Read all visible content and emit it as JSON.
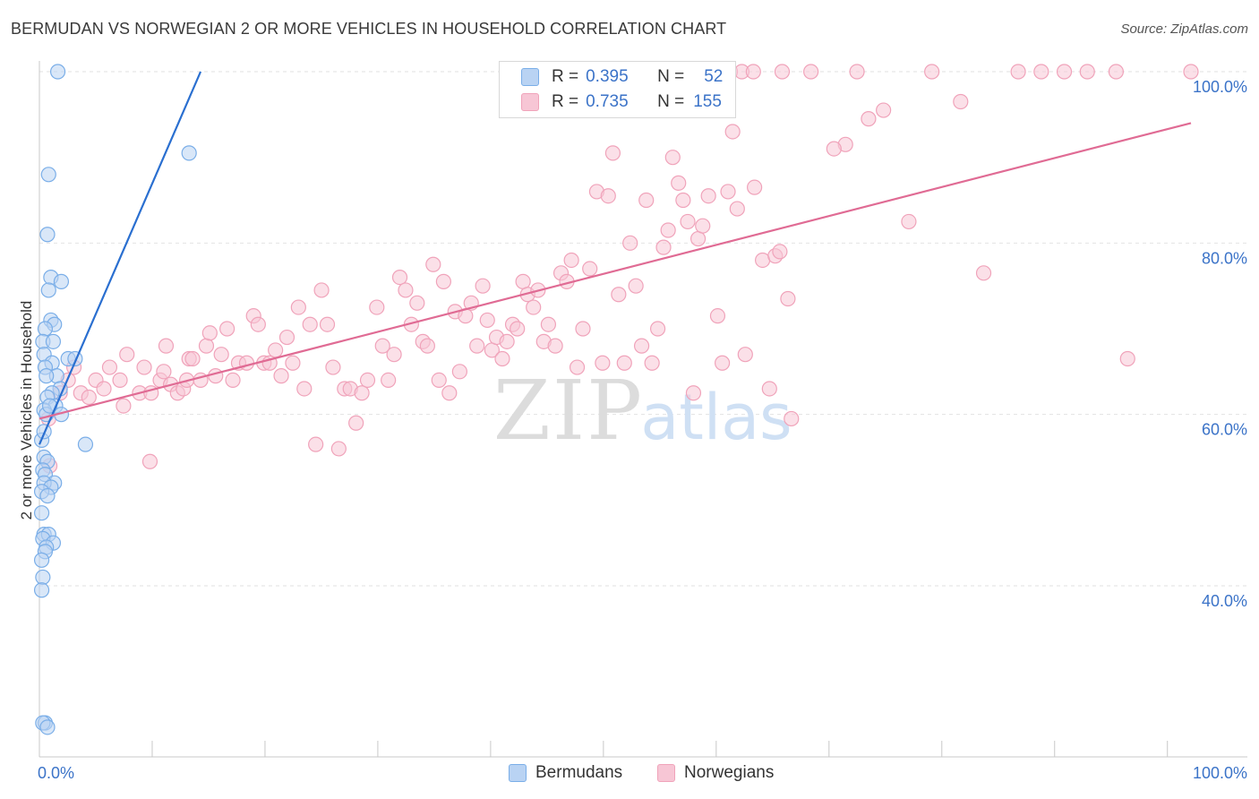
{
  "chart_data": {
    "type": "scatter",
    "title": "BERMUDAN VS NORWEGIAN 2 OR MORE VEHICLES IN HOUSEHOLD CORRELATION CHART",
    "source": "Source: ZipAtlas.com",
    "ylabel": "2 or more Vehicles in Household",
    "xlim": [
      0,
      100
    ],
    "ylim": [
      20,
      102
    ],
    "x_tick_labels": {
      "left": "0.0%",
      "right": "100.0%"
    },
    "y_ticks": [
      {
        "value": 40,
        "label": "40.0%"
      },
      {
        "value": 60,
        "label": "60.0%"
      },
      {
        "value": 80,
        "label": "80.0%"
      },
      {
        "value": 100,
        "label": "100.0%"
      }
    ],
    "watermark": {
      "zip": "ZIP",
      "atlas": "atlas"
    },
    "legend": [
      {
        "r_label": "R =",
        "r_value": "0.395",
        "n_label": "N =",
        "n_value": "52"
      },
      {
        "r_label": "R =",
        "r_value": "0.735",
        "n_label": "N =",
        "n_value": "155"
      }
    ],
    "series": [
      {
        "name": "Bermudans",
        "color": "#7aaee8",
        "fill": "#b9d3f3",
        "line_color": "#2a6fd0",
        "trend": [
          [
            0,
            56.5
          ],
          [
            14,
            100
          ]
        ],
        "points": [
          [
            1.6,
            100
          ],
          [
            0.8,
            88
          ],
          [
            13,
            90.5
          ],
          [
            0.7,
            81
          ],
          [
            1,
            76
          ],
          [
            1.9,
            75.5
          ],
          [
            0.8,
            74.5
          ],
          [
            1,
            71
          ],
          [
            1.3,
            70.5
          ],
          [
            0.5,
            70
          ],
          [
            0.3,
            68.5
          ],
          [
            1.2,
            68.5
          ],
          [
            0.4,
            67
          ],
          [
            2.5,
            66.5
          ],
          [
            3.1,
            66.5
          ],
          [
            1.1,
            66
          ],
          [
            0.5,
            65.5
          ],
          [
            1.5,
            64.5
          ],
          [
            0.6,
            64.5
          ],
          [
            1.8,
            63
          ],
          [
            1.1,
            62.5
          ],
          [
            0.7,
            62
          ],
          [
            1.4,
            61
          ],
          [
            0.4,
            60.5
          ],
          [
            1.9,
            60
          ],
          [
            0.6,
            60
          ],
          [
            0.2,
            57
          ],
          [
            4,
            56.5
          ],
          [
            0.4,
            55
          ],
          [
            0.7,
            54.5
          ],
          [
            0.3,
            53.5
          ],
          [
            0.5,
            53
          ],
          [
            1.3,
            52
          ],
          [
            0.4,
            52
          ],
          [
            1,
            51.5
          ],
          [
            0.2,
            51
          ],
          [
            0.7,
            50.5
          ],
          [
            0.2,
            48.5
          ],
          [
            0.4,
            46
          ],
          [
            0.8,
            46
          ],
          [
            0.3,
            45.5
          ],
          [
            1.2,
            45
          ],
          [
            0.6,
            44.5
          ],
          [
            0.5,
            44
          ],
          [
            0.2,
            43
          ],
          [
            0.3,
            41
          ],
          [
            0.2,
            39.5
          ],
          [
            0.5,
            24
          ],
          [
            0.3,
            24
          ],
          [
            0.7,
            23.5
          ],
          [
            0.9,
            61
          ],
          [
            0.4,
            58
          ]
        ]
      },
      {
        "name": "Norwegians",
        "color": "#f0a3ba",
        "fill": "#f7c6d5",
        "line_color": "#e06b94",
        "trend": [
          [
            0,
            59.5
          ],
          [
            100,
            94
          ]
        ],
        "points": [
          [
            0.8,
            59.5
          ],
          [
            0.9,
            54
          ],
          [
            1.8,
            62.5
          ],
          [
            2.5,
            64
          ],
          [
            3,
            65.5
          ],
          [
            3.6,
            62.5
          ],
          [
            4.3,
            62
          ],
          [
            4.9,
            64
          ],
          [
            5.6,
            63
          ],
          [
            6.1,
            65.5
          ],
          [
            7,
            64
          ],
          [
            7.3,
            61
          ],
          [
            7.6,
            67
          ],
          [
            8.7,
            62.5
          ],
          [
            9.1,
            65.5
          ],
          [
            9.7,
            62.5
          ],
          [
            9.6,
            54.5
          ],
          [
            10.5,
            64
          ],
          [
            10.8,
            65
          ],
          [
            11,
            68
          ],
          [
            11.4,
            63.5
          ],
          [
            12,
            62.5
          ],
          [
            12.5,
            63
          ],
          [
            12.8,
            64
          ],
          [
            13,
            66.5
          ],
          [
            13.3,
            66.5
          ],
          [
            14,
            64
          ],
          [
            14.5,
            68
          ],
          [
            14.8,
            69.5
          ],
          [
            15.3,
            64.5
          ],
          [
            15.8,
            67
          ],
          [
            16.3,
            70
          ],
          [
            16.8,
            64
          ],
          [
            17.3,
            66
          ],
          [
            18,
            66
          ],
          [
            18.6,
            71.5
          ],
          [
            19,
            70.5
          ],
          [
            19.5,
            66
          ],
          [
            20,
            66
          ],
          [
            20.5,
            67.5
          ],
          [
            21,
            64.5
          ],
          [
            21.5,
            69
          ],
          [
            22,
            66
          ],
          [
            22.5,
            72.5
          ],
          [
            23,
            63
          ],
          [
            23.5,
            70.5
          ],
          [
            24,
            56.5
          ],
          [
            24.5,
            74.5
          ],
          [
            25,
            70.5
          ],
          [
            25.5,
            65.5
          ],
          [
            26,
            56
          ],
          [
            26.5,
            63
          ],
          [
            27,
            63
          ],
          [
            27.5,
            59
          ],
          [
            28,
            62.5
          ],
          [
            28.5,
            64
          ],
          [
            29.3,
            72.5
          ],
          [
            29.8,
            68
          ],
          [
            30.3,
            64
          ],
          [
            30.8,
            67
          ],
          [
            31.3,
            76
          ],
          [
            31.8,
            74.5
          ],
          [
            32.3,
            70.5
          ],
          [
            32.8,
            73
          ],
          [
            33.3,
            68.5
          ],
          [
            33.7,
            68
          ],
          [
            34.2,
            77.5
          ],
          [
            34.7,
            64
          ],
          [
            35.1,
            75.5
          ],
          [
            35.6,
            62.5
          ],
          [
            36.1,
            72
          ],
          [
            36.5,
            65
          ],
          [
            37,
            71.5
          ],
          [
            37.5,
            73
          ],
          [
            38,
            68
          ],
          [
            38.5,
            75
          ],
          [
            38.9,
            71
          ],
          [
            39.3,
            67.5
          ],
          [
            39.7,
            69
          ],
          [
            40.2,
            66.5
          ],
          [
            40.6,
            68.5
          ],
          [
            41.1,
            70.5
          ],
          [
            41.5,
            70
          ],
          [
            42,
            75.5
          ],
          [
            42.4,
            74
          ],
          [
            42.9,
            72.5
          ],
          [
            43.3,
            74.5
          ],
          [
            43.8,
            68.5
          ],
          [
            44.2,
            70.5
          ],
          [
            44.8,
            68
          ],
          [
            45.3,
            76.5
          ],
          [
            45.8,
            75.5
          ],
          [
            46.2,
            78
          ],
          [
            46.7,
            65.5
          ],
          [
            47.2,
            70
          ],
          [
            47.8,
            77
          ],
          [
            48.4,
            86
          ],
          [
            48.9,
            66
          ],
          [
            49.4,
            85.5
          ],
          [
            49.8,
            90.5
          ],
          [
            50.3,
            74
          ],
          [
            50.8,
            66
          ],
          [
            51.3,
            80
          ],
          [
            51.8,
            75
          ],
          [
            52.3,
            68
          ],
          [
            52.7,
            85
          ],
          [
            53.2,
            66
          ],
          [
            53.7,
            70
          ],
          [
            54.2,
            79.5
          ],
          [
            54.6,
            81.5
          ],
          [
            55,
            90
          ],
          [
            55.5,
            87
          ],
          [
            55.9,
            85
          ],
          [
            56.3,
            82.5
          ],
          [
            56.8,
            62.5
          ],
          [
            57.2,
            80.5
          ],
          [
            57.6,
            82
          ],
          [
            58.1,
            85.5
          ],
          [
            58.5,
            100
          ],
          [
            58.9,
            71.5
          ],
          [
            59.3,
            66
          ],
          [
            59.8,
            86
          ],
          [
            60.2,
            93
          ],
          [
            60.6,
            84
          ],
          [
            61.3,
            67
          ],
          [
            62.1,
            86.5
          ],
          [
            62.8,
            78
          ],
          [
            63.4,
            63
          ],
          [
            63.9,
            78.5
          ],
          [
            64.3,
            79
          ],
          [
            65,
            73.5
          ],
          [
            65.3,
            59.5
          ],
          [
            70,
            91.5
          ],
          [
            73.3,
            95.5
          ],
          [
            80,
            96.5
          ],
          [
            85,
            100
          ],
          [
            87,
            100
          ],
          [
            89,
            100
          ],
          [
            91,
            100
          ],
          [
            94.5,
            66.5
          ],
          [
            100,
            100
          ],
          [
            60,
            100
          ],
          [
            61,
            100
          ],
          [
            64.5,
            100
          ],
          [
            67,
            100
          ],
          [
            71,
            100
          ],
          [
            77.5,
            100
          ],
          [
            82,
            76.5
          ],
          [
            93.5,
            100
          ],
          [
            75.5,
            82.5
          ],
          [
            62,
            100
          ],
          [
            72,
            94.5
          ],
          [
            69,
            91
          ]
        ]
      }
    ]
  }
}
